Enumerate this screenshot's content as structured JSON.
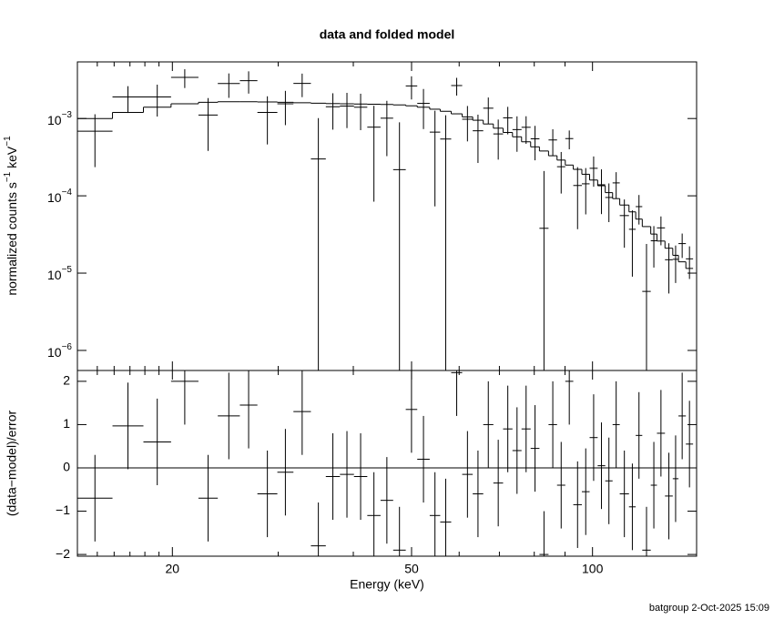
{
  "footer": "batgroup  2-Oct-2025 15:09",
  "chart_data": [
    {
      "type": "spectrum",
      "title": "data and folded model",
      "ylabel": [
        "normalized counts s",
        "−1",
        " keV",
        "−1"
      ],
      "log_y": true,
      "ylim": [
        5.5e-07,
        0.0054
      ],
      "yticks": [
        {
          "value": 1e-06,
          "label": "10",
          "exponent": "−6"
        },
        {
          "value": 1e-05,
          "label": "10",
          "exponent": "−5"
        },
        {
          "value": 0.0001,
          "label": "10",
          "exponent": "−4"
        },
        {
          "value": 0.001,
          "label": "10",
          "exponent": "−3"
        }
      ],
      "bins": [
        13.9,
        15.9,
        17.9,
        19.9,
        22.1,
        23.8,
        25.9,
        27.7,
        29.9,
        31.8,
        34.0,
        36.0,
        38.0,
        40.1,
        42.2,
        44.4,
        46.6,
        48.9,
        51.1,
        53.6,
        55.8,
        58.2,
        60.7,
        63.2,
        65.8,
        68.4,
        71.0,
        73.6,
        76.2,
        78.9,
        81.6,
        84.5,
        87.3,
        90.1,
        92.9,
        96.0,
        98.9,
        102,
        105,
        108,
        111,
        115,
        118,
        121,
        125,
        128,
        132,
        136,
        139,
        143,
        147
      ],
      "data": {
        "color": "#000000",
        "values": [
          0.000685,
          0.0019,
          0.0019,
          0.00341,
          0.00111,
          0.00284,
          0.00309,
          0.0012,
          0.00155,
          0.00285,
          0.0003,
          0.00142,
          0.00145,
          0.0014,
          0.000773,
          0.00101,
          0.000218,
          0.00264,
          0.00157,
          0.000667,
          0.000543,
          0.00267,
          0.000979,
          0.000694,
          0.00136,
          0.000632,
          0.00102,
          0.000719,
          0.00077,
          0.000546,
          3.8e-05,
          0.000528,
          0.000238,
          0.00055,
          0.000136,
          0.000143,
          0.000227,
          0.000139,
          9.52e-05,
          0.000147,
          5.55e-05,
          3.69e-05,
          7.25e-05,
          5.8e-06,
          2.62e-05,
          3.85e-05,
          1.49e-05,
          1.51e-05,
          2.41e-05,
          1.53e-05
        ],
        "errors": [
          0.00045,
          0.00072,
          0.00084,
          0.00093,
          0.000729,
          0.00099,
          0.00099,
          0.000738,
          0.000729,
          0.00096,
          0.000711,
          0.000702,
          0.000698,
          0.000693,
          0.000689,
          0.000684,
          0.000675,
          0.000876,
          0.00084,
          0.000594,
          0.000558,
          0.00069,
          0.000473,
          0.000428,
          0.00051,
          0.000338,
          0.000396,
          0.000348,
          0.0003,
          0.000258,
          0.000171,
          0.000198,
          0.000131,
          0.00015,
          9.9e-05,
          8.55e-05,
          9.6e-05,
          8.1e-05,
          4.95e-05,
          5.52e-05,
          3.42e-05,
          2.79e-05,
          3e-05,
          1.8e-05,
          1.44e-05,
          1.56e-05,
          9.45e-06,
          7.65e-06,
          8.4e-06,
          6.9e-06
        ]
      },
      "model": {
        "color": "#000000",
        "values": [
          0.001,
          0.0012,
          0.0014,
          0.00155,
          0.00162,
          0.00165,
          0.00165,
          0.00164,
          0.00162,
          0.0016,
          0.00158,
          0.00156,
          0.00155,
          0.00154,
          0.00153,
          0.00152,
          0.0015,
          0.00146,
          0.0014,
          0.00132,
          0.00124,
          0.00115,
          0.00105,
          0.00095,
          0.00085,
          0.00075,
          0.00066,
          0.00058,
          0.0005,
          0.00043,
          0.00038,
          0.00033,
          0.00029,
          0.00025,
          0.00022,
          0.00019,
          0.00016,
          0.000135,
          0.00011,
          9.2e-05,
          7.6e-05,
          6.2e-05,
          5e-05,
          4e-05,
          3.2e-05,
          2.6e-05,
          2.1e-05,
          1.7e-05,
          1.4e-05,
          1.15e-05
        ]
      }
    },
    {
      "type": "residuals",
      "xlabel": "Energy (keV)",
      "ylabel": "(data−model)/error",
      "log_x": true,
      "xlim": [
        13.9,
        149
      ],
      "xticks": [
        20,
        50,
        100
      ],
      "xminorticks": [
        15,
        16,
        17,
        18,
        19,
        30,
        40,
        60,
        70,
        80,
        90
      ],
      "ylim": [
        -2.04,
        2.25
      ],
      "yticks": [
        {
          "value": -2,
          "label": "−2"
        },
        {
          "value": -1,
          "label": "−1"
        },
        0,
        1,
        2
      ],
      "color": "#000000",
      "values": [
        -0.7,
        0.97,
        0.6,
        2.0,
        -0.7,
        1.2,
        1.45,
        -0.6,
        -0.1,
        1.3,
        -1.8,
        -0.2,
        -0.15,
        -0.2,
        -1.1,
        -0.75,
        -1.9,
        1.35,
        0.2,
        -1.1,
        -1.25,
        2.2,
        -0.15,
        -0.6,
        1.0,
        -0.35,
        0.9,
        0.4,
        0.9,
        0.45,
        -2.0,
        1.0,
        -0.4,
        2.0,
        -0.85,
        -0.55,
        0.7,
        0.05,
        -0.3,
        1.0,
        -0.6,
        -0.9,
        0.75,
        -1.9,
        -0.4,
        0.8,
        -0.65,
        -0.25,
        1.2,
        0.55
      ],
      "errors": [
        1,
        1,
        1,
        1,
        1,
        1,
        1,
        1,
        1,
        1,
        1,
        1,
        1,
        1,
        1,
        1,
        1,
        1,
        1,
        1,
        1,
        1,
        1,
        1,
        1,
        1,
        1,
        1,
        1,
        1,
        1,
        1,
        1,
        1,
        1,
        1,
        1,
        1,
        1,
        1,
        1,
        1,
        1,
        1,
        1,
        1,
        1,
        1,
        1,
        1
      ],
      "reference_line": {
        "value": 0,
        "color": "#00dd00"
      }
    }
  ]
}
